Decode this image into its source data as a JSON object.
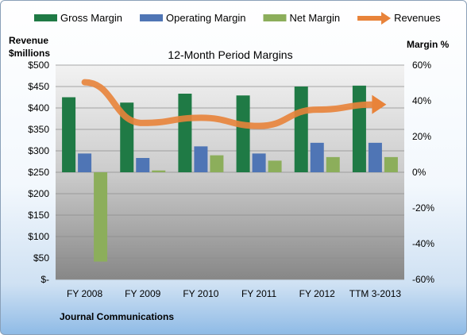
{
  "chart_data": {
    "type": "bar",
    "title": "12-Month Period Margins",
    "company": "Journal Communications",
    "left_axis": {
      "label_line1": "Revenue",
      "label_line2": "$millions",
      "ylim": [
        0,
        500
      ],
      "ticks": [
        "$-",
        "$50",
        "$100",
        "$150",
        "$200",
        "$250",
        "$300",
        "$350",
        "$400",
        "$450",
        "$500"
      ]
    },
    "right_axis": {
      "label": "Margin %",
      "ylim": [
        -60,
        60
      ],
      "ticks": [
        "-60%",
        "-40%",
        "-20%",
        "0%",
        "20%",
        "40%",
        "60%"
      ]
    },
    "categories": [
      "FY 2008",
      "FY 2009",
      "FY 2010",
      "FY 2011",
      "FY 2012",
      "TTM 3-2013"
    ],
    "series": [
      {
        "name": "Gross Margin",
        "type": "bar",
        "axis": "right",
        "color": "#1f7a45",
        "values": [
          42,
          39,
          44,
          43,
          48,
          48.5
        ]
      },
      {
        "name": "Operating Margin",
        "type": "bar",
        "axis": "right",
        "color": "#4f75b5",
        "values": [
          10.5,
          8,
          14.5,
          10.5,
          16.5,
          16.5
        ]
      },
      {
        "name": "Net Margin",
        "type": "bar",
        "axis": "right",
        "color": "#8cae5b",
        "values": [
          -50,
          1,
          9.5,
          6.5,
          8.5,
          8.5
        ]
      },
      {
        "name": "Revenues",
        "type": "line",
        "axis": "left",
        "color": "#e8833a",
        "values": [
          460,
          365,
          377,
          358,
          396,
          408
        ]
      }
    ],
    "grid": true,
    "legend_position": "top"
  }
}
